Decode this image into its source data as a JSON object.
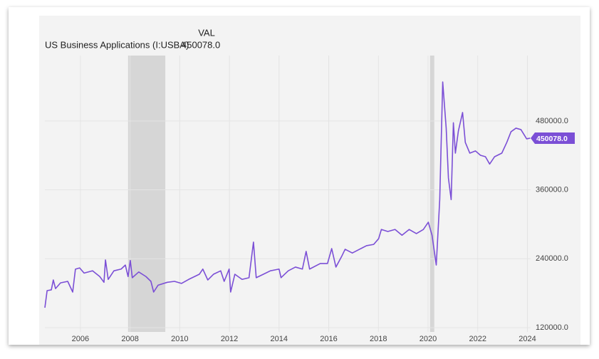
{
  "chart_data": {
    "type": "line",
    "header": "VAL",
    "x": [
      2004.57,
      2004.66,
      2004.83,
      2004.91,
      2005.0,
      2005.2,
      2005.49,
      2005.69,
      2005.8,
      2005.97,
      2006.15,
      2006.49,
      2006.78,
      2006.95,
      2007.01,
      2007.12,
      2007.35,
      2007.64,
      2007.81,
      2007.92,
      2008.01,
      2008.09,
      2008.35,
      2008.64,
      2008.84,
      2008.95,
      2009.13,
      2009.5,
      2009.79,
      2010.07,
      2010.36,
      2010.79,
      2010.93,
      2011.13,
      2011.36,
      2011.65,
      2011.79,
      2011.99,
      2012.05,
      2012.22,
      2012.51,
      2012.79,
      2012.97,
      2013.08,
      2013.37,
      2013.65,
      2014.0,
      2014.08,
      2014.37,
      2014.66,
      2014.94,
      2015.09,
      2015.23,
      2015.66,
      2015.95,
      2016.12,
      2016.29,
      2016.52,
      2016.66,
      2016.95,
      2017.24,
      2017.52,
      2017.81,
      2018.01,
      2018.12,
      2018.38,
      2018.67,
      2018.95,
      2019.24,
      2019.53,
      2019.81,
      2020.01,
      2020.16,
      2020.33,
      2020.47,
      2020.59,
      2020.73,
      2020.82,
      2020.93,
      2021.02,
      2021.1,
      2021.22,
      2021.39,
      2021.5,
      2021.68,
      2021.91,
      2022.11,
      2022.31,
      2022.48,
      2022.68,
      2022.97,
      2023.17,
      2023.34,
      2023.54,
      2023.74,
      2023.97,
      2024.11
    ],
    "series": [
      {
        "name": "US Business Applications (I:USBA)",
        "color": "#7b4fd6",
        "values": [
          154700,
          184500,
          185800,
          203000,
          188000,
          198000,
          200600,
          182000,
          221800,
          224000,
          215000,
          219000,
          209000,
          199000,
          238000,
          204000,
          219000,
          222000,
          229000,
          209000,
          237000,
          207000,
          217000,
          209000,
          200600,
          182000,
          194000,
          199000,
          200600,
          197000,
          204000,
          213000,
          222000,
          203000,
          213000,
          219000,
          200600,
          222000,
          182000,
          213000,
          204000,
          207000,
          269000,
          207000,
          213000,
          219000,
          222000,
          207000,
          219000,
          225500,
          222000,
          252800,
          222000,
          231700,
          231700,
          257700,
          225500,
          244000,
          256500,
          250000,
          256500,
          262700,
          265000,
          275000,
          291000,
          287500,
          291000,
          281000,
          291000,
          283800,
          291000,
          303700,
          281000,
          229000,
          343000,
          548000,
          467500,
          380600,
          343000,
          477000,
          424000,
          462500,
          494800,
          442700,
          424000,
          427800,
          420300,
          417800,
          405000,
          417800,
          424000,
          442700,
          461300,
          467500,
          465000,
          448900,
          450078
        ],
        "last_value_label": "450078.0"
      }
    ],
    "recessions": [
      [
        2007.92,
        2009.42
      ],
      [
        2020.08,
        2020.25
      ]
    ],
    "xlim": [
      2004.57,
      2024.13
    ],
    "xticks": [
      2006,
      2008,
      2010,
      2012,
      2014,
      2016,
      2018,
      2020,
      2022,
      2024
    ],
    "ylim": [
      112500,
      594000
    ],
    "yticks": [
      {
        "value": 120000,
        "label": "120000.0"
      },
      {
        "value": 240000,
        "label": "240000.0"
      },
      {
        "value": 360000,
        "label": "360000.0"
      },
      {
        "value": 480000,
        "label": "480000.0"
      }
    ],
    "grid": true
  }
}
